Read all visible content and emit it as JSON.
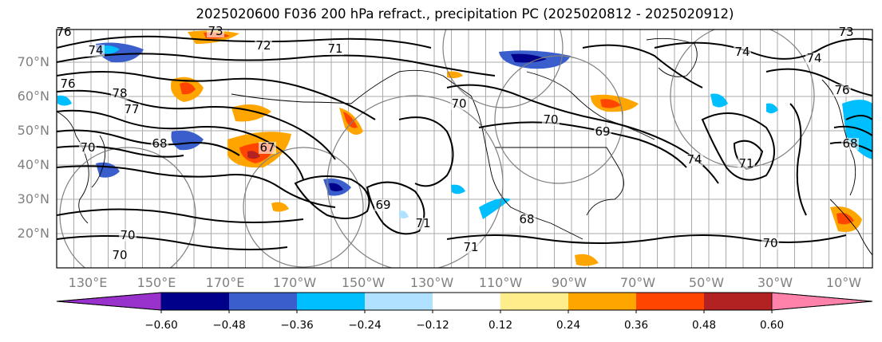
{
  "title": "2025020600 F036 200 hPa refract., precipitation PC (2025020812 - 2025020912)",
  "lat_labels": [
    "70°N",
    "60°N",
    "50°N",
    "40°N",
    "30°N",
    "20°N"
  ],
  "lon_labels": [
    "130°E",
    "150°E",
    "170°E",
    "170°W",
    "150°W",
    "130°W",
    "110°W",
    "90°W",
    "70°W",
    "50°W",
    "30°W",
    "10°W"
  ],
  "contour_labels": [
    "76",
    "74",
    "73",
    "72",
    "71",
    "76",
    "78",
    "77",
    "70",
    "68",
    "67",
    "69",
    "71",
    "70",
    "70",
    "68",
    "70",
    "69",
    "71",
    "74",
    "74",
    "70",
    "71",
    "73",
    "74",
    "76",
    "68",
    "70"
  ],
  "colorbar": {
    "labels": [
      "−0.60",
      "−0.48",
      "−0.36",
      "−0.24",
      "−0.12",
      "0.12",
      "0.24",
      "0.36",
      "0.48",
      "0.60"
    ],
    "colors": [
      "#9932cc",
      "#00008b",
      "#3a5fcd",
      "#00bfff",
      "#b0e2ff",
      "#ffffff",
      "#ffec8b",
      "#ffa500",
      "#ff4500",
      "#b22222",
      "#ff82ab"
    ]
  },
  "colors": {
    "grid": "#a9a9a9",
    "contour": "#000000",
    "tick": "#808080",
    "circle": "#808080"
  }
}
